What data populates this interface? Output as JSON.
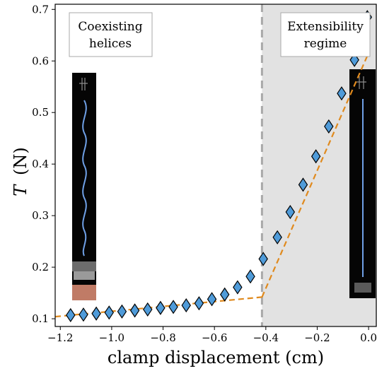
{
  "chart_data": {
    "type": "scatter",
    "xlabel": "clamp displacement  (cm)",
    "ylabel_italic": "T",
    "ylabel_unit": "(N)",
    "xlim": [
      -1.22,
      0.03
    ],
    "ylim": [
      0.085,
      0.71
    ],
    "xticks": [
      -1.2,
      -1.0,
      -0.8,
      -0.6,
      -0.4,
      -0.2,
      0.0
    ],
    "xtick_labels": [
      "−1.2",
      "−1.0",
      "−0.8",
      "−0.6",
      "−0.4",
      "−0.2",
      "0.0"
    ],
    "yticks": [
      0.1,
      0.2,
      0.3,
      0.4,
      0.5,
      0.6,
      0.7
    ],
    "ytick_labels": [
      "0.1",
      "0.2",
      "0.3",
      "0.4",
      "0.5",
      "0.6",
      "0.7"
    ],
    "regime_boundary_x": -0.415,
    "shaded_region": [
      -0.415,
      0.03
    ],
    "annotations": [
      {
        "lines": [
          "Coexisting",
          "helices"
        ]
      },
      {
        "lines": [
          "Extensibility",
          "regime"
        ]
      }
    ],
    "series": [
      {
        "marker": "diamond",
        "color": "#4f9bd9",
        "x": [
          -1.16,
          -1.11,
          -1.06,
          -1.01,
          -0.96,
          -0.91,
          -0.86,
          -0.81,
          -0.76,
          -0.71,
          -0.66,
          -0.61,
          -0.56,
          -0.51,
          -0.46,
          -0.41,
          -0.355,
          -0.305,
          -0.255,
          -0.205,
          -0.155,
          -0.105,
          -0.055,
          -0.005
        ],
        "y": [
          0.107,
          0.108,
          0.11,
          0.112,
          0.114,
          0.116,
          0.118,
          0.121,
          0.123,
          0.126,
          0.13,
          0.138,
          0.147,
          0.161,
          0.182,
          0.216,
          0.258,
          0.307,
          0.36,
          0.415,
          0.473,
          0.537,
          0.602,
          0.685
        ]
      }
    ],
    "fit_lines": [
      {
        "style": "dashed",
        "color": "#e08a1e",
        "x": [
          -1.22,
          -0.415
        ],
        "y": [
          0.104,
          0.142
        ]
      },
      {
        "style": "dashed",
        "color": "#e08a1e",
        "x": [
          -0.415,
          -0.005
        ],
        "y": [
          0.142,
          0.61
        ]
      }
    ]
  }
}
